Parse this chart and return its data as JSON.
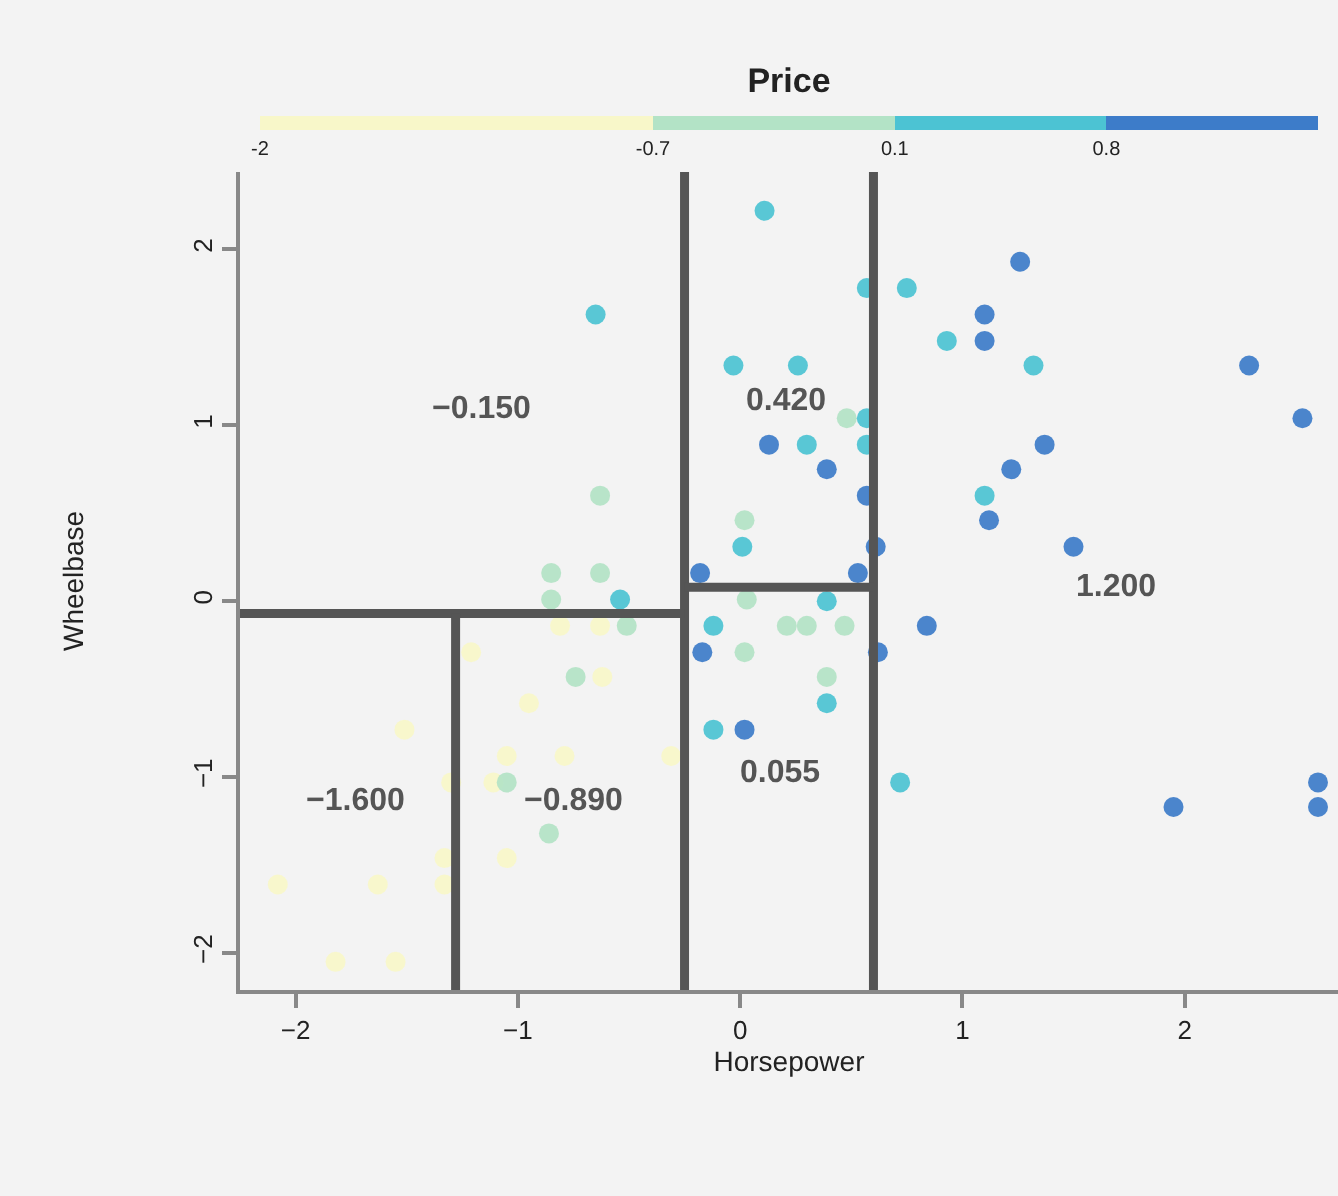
{
  "chart_data": {
    "type": "scatter",
    "xlabel": "Horsepower",
    "ylabel": "Wheelbase",
    "clabel": "Price",
    "xlim": [
      -2.25,
      2.69
    ],
    "ylim": [
      -2.21,
      2.44
    ],
    "xticks": [
      -2,
      -1,
      0,
      1,
      2
    ],
    "yticks": [
      -2,
      -1,
      0,
      1,
      2
    ],
    "clim": [
      -2,
      1.5
    ],
    "cticks": [
      -2,
      -0.7,
      0.1,
      0.8
    ],
    "grid": false,
    "marker": "circle",
    "series": [
      {
        "x": [
          -0.65,
          0.11,
          -0.03,
          0.13,
          -0.63,
          0.02,
          0.01,
          -0.85,
          -0.63,
          -0.85,
          -0.54,
          -0.18,
          -0.81,
          -0.63,
          -0.51,
          -0.12,
          1.26,
          0.57,
          0.75,
          1.1,
          0.93,
          1.1,
          0.26,
          1.32,
          2.29,
          2.53,
          0.48,
          0.57,
          0.3,
          0.57,
          1.37,
          0.39,
          1.22,
          0.57,
          1.1,
          1.12,
          0.61,
          1.5,
          0.53,
          0.39,
          0.84,
          0.21,
          0.3,
          0.47,
          -1.21,
          -0.74,
          -0.62,
          -0.95,
          -1.51,
          -1.05,
          -0.79,
          -0.31,
          -1.3,
          -1.11,
          -1.05,
          -0.86,
          -1.33,
          -1.05,
          -2.08,
          -1.63,
          -1.33,
          -1.82,
          -1.55,
          -0.12,
          0.02,
          -0.17,
          0.02,
          0.03,
          0.62,
          0.39,
          0.39,
          0.72,
          1.95,
          2.6,
          2.6
        ],
        "values": [
          1.63,
          2.22,
          1.34,
          0.89,
          0.6,
          0.46,
          0.31,
          0.16,
          0.16,
          0.01,
          0.01,
          0.16,
          -0.14,
          -0.14,
          -0.14,
          -0.14,
          1.93,
          1.78,
          1.78,
          1.63,
          1.48,
          1.48,
          1.34,
          1.34,
          1.34,
          1.04,
          1.04,
          1.04,
          0.89,
          0.89,
          0.89,
          0.75,
          0.75,
          0.6,
          0.6,
          0.46,
          0.31,
          0.31,
          0.16,
          0.0,
          -0.14,
          -0.14,
          -0.14,
          -0.14,
          -0.29,
          -0.43,
          -0.43,
          -0.58,
          -0.73,
          -0.88,
          -0.88,
          -0.88,
          -1.03,
          -1.03,
          -1.03,
          -1.32,
          -1.46,
          -1.46,
          -1.61,
          -1.61,
          -1.61,
          -2.05,
          -2.05,
          -0.73,
          -0.73,
          -0.29,
          -0.29,
          0.01,
          -0.29,
          -0.43,
          -0.58,
          -1.03,
          -1.17,
          -1.03,
          -1.17
        ],
        "colors": [
          "#4cc3d3",
          "#4cc3d3",
          "#4cc3d3",
          "#3d7cc9",
          "#b3e3c6",
          "#b3e3c6",
          "#4cc3d3",
          "#b3e3c6",
          "#b3e3c6",
          "#b3e3c6",
          "#4cc3d3",
          "#3d7cc9",
          "#f8f7c9",
          "#f8f7c9",
          "#b3e3c6",
          "#4cc3d3",
          "#3d7cc9",
          "#4cc3d3",
          "#4cc3d3",
          "#3d7cc9",
          "#4cc3d3",
          "#3d7cc9",
          "#4cc3d3",
          "#4cc3d3",
          "#3d7cc9",
          "#3d7cc9",
          "#b3e3c6",
          "#4cc3d3",
          "#4cc3d3",
          "#4cc3d3",
          "#3d7cc9",
          "#3d7cc9",
          "#3d7cc9",
          "#3d7cc9",
          "#4cc3d3",
          "#3d7cc9",
          "#3d7cc9",
          "#3d7cc9",
          "#3d7cc9",
          "#4cc3d3",
          "#3d7cc9",
          "#b3e3c6",
          "#b3e3c6",
          "#b3e3c6",
          "#f8f7c9",
          "#b3e3c6",
          "#f8f7c9",
          "#f8f7c9",
          "#f8f7c9",
          "#f8f7c9",
          "#f8f7c9",
          "#f8f7c9",
          "#f8f7c9",
          "#f8f7c9",
          "#b3e3c6",
          "#b3e3c6",
          "#f8f7c9",
          "#f8f7c9",
          "#f8f7c9",
          "#f8f7c9",
          "#f8f7c9",
          "#f8f7c9",
          "#f8f7c9",
          "#4cc3d3",
          "#3d7cc9",
          "#3d7cc9",
          "#b3e3c6",
          "#b3e3c6",
          "#3d7cc9",
          "#b3e3c6",
          "#4cc3d3",
          "#4cc3d3",
          "#3d7cc9",
          "#3d7cc9",
          "#3d7cc9"
        ]
      },
      {
        "type": "line",
        "marker": "none",
        "color": "#555555",
        "x": [
          -0.25,
          -0.25
        ],
        "values": [
          -2.21,
          2.44
        ]
      },
      {
        "type": "line",
        "marker": "none",
        "color": "#555555",
        "x": [
          0.6,
          0.6
        ],
        "values": [
          -2.21,
          2.44
        ]
      },
      {
        "type": "line",
        "marker": "none",
        "color": "#555555",
        "x": [
          -2.25,
          -0.25
        ],
        "values": [
          -0.07,
          -0.07
        ]
      },
      {
        "type": "line",
        "marker": "none",
        "color": "#555555",
        "x": [
          -1.28,
          -1.28
        ],
        "values": [
          -2.21,
          -0.07
        ]
      },
      {
        "type": "line",
        "marker": "none",
        "color": "#555555",
        "x": [
          -0.25,
          0.6
        ],
        "values": [
          0.08,
          0.08
        ]
      }
    ],
    "annotations": [
      "−0.150",
      "0.420",
      "1.200",
      "−1.600",
      "−0.890",
      "0.055"
    ]
  }
}
